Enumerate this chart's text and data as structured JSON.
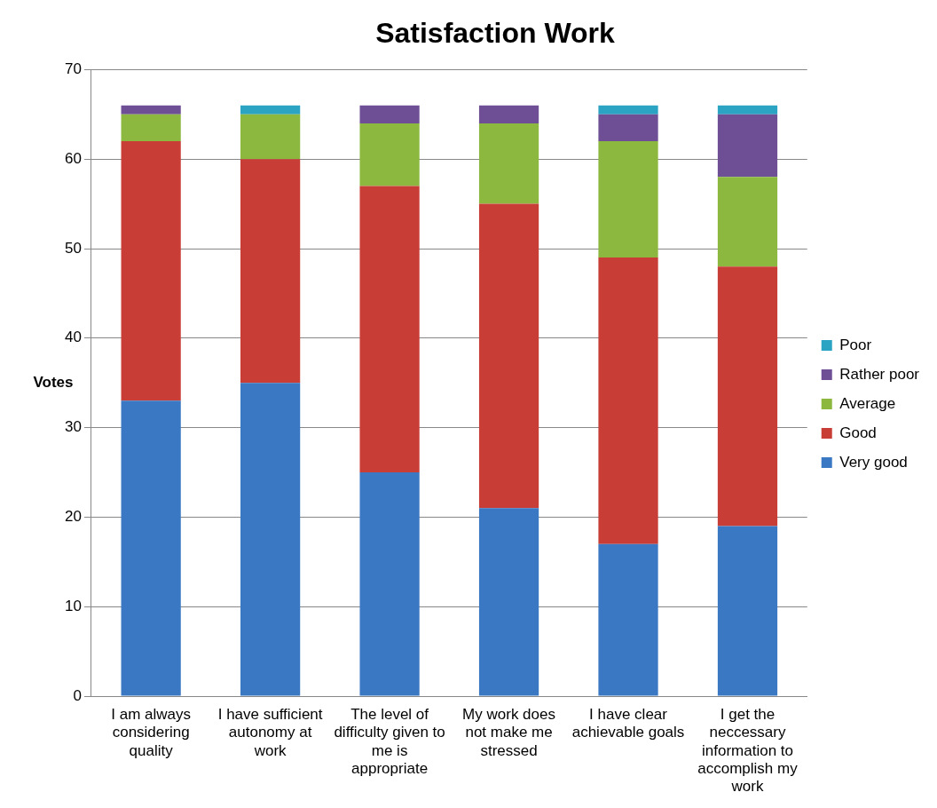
{
  "chart_data": {
    "type": "bar",
    "title": "Satisfaction Work",
    "ylabel": "Votes",
    "stacked": true,
    "categories": [
      "I am always considering quality",
      "I have sufficient autonomy at work",
      "The level of difficulty given to me is appropriate",
      "My work does not make me stressed",
      "I have clear achievable goals",
      "I get the neccessary information to accomplish my work"
    ],
    "series": [
      {
        "name": "Very good",
        "color": "#3a78c3",
        "values": [
          33,
          35,
          25,
          21,
          17,
          19
        ]
      },
      {
        "name": "Good",
        "color": "#c93d37",
        "values": [
          29,
          25,
          32,
          34,
          32,
          29
        ]
      },
      {
        "name": "Average",
        "color": "#8cb83f",
        "values": [
          3,
          5,
          7,
          9,
          13,
          10
        ]
      },
      {
        "name": "Rather poor",
        "color": "#6e4f96",
        "values": [
          1,
          0,
          2,
          2,
          3,
          7
        ]
      },
      {
        "name": "Poor",
        "color": "#2ba3c2",
        "values": [
          0,
          1,
          0,
          0,
          1,
          1
        ]
      }
    ],
    "ylim": [
      0,
      70
    ],
    "yticks": [
      0,
      10,
      20,
      30,
      40,
      50,
      60,
      70
    ],
    "grid": "y",
    "legend": "right"
  }
}
